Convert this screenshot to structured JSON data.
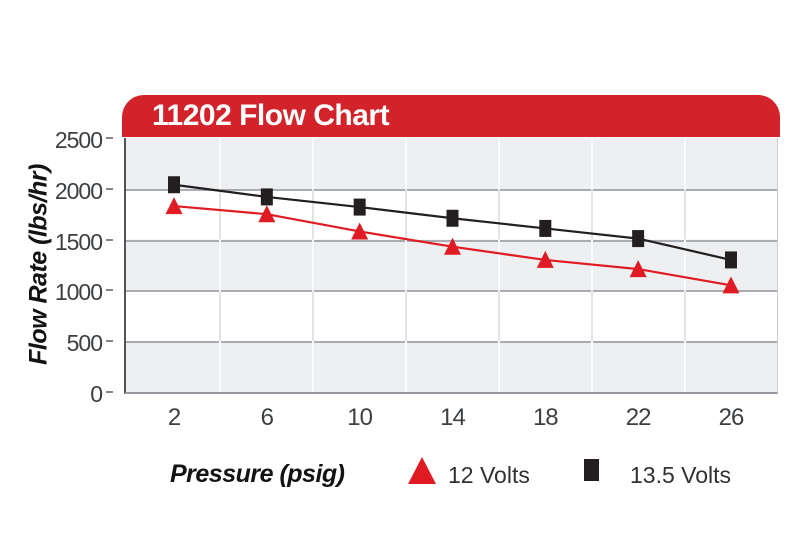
{
  "banner": {
    "title": "11202 Flow Chart"
  },
  "chart_data": {
    "type": "line",
    "title": "11202 Flow Chart",
    "xlabel": "Pressure (psig)",
    "ylabel": "Flow Rate (lbs/hr)",
    "x": [
      2,
      6,
      10,
      14,
      18,
      22,
      26
    ],
    "xticks": [
      2,
      6,
      10,
      14,
      18,
      22,
      26
    ],
    "yticks": [
      0,
      500,
      1000,
      1500,
      2000,
      2500
    ],
    "ylim": [
      0,
      2500
    ],
    "grid": "horizontal gridlines every 500 with alternating gray/white bands; faint vertical gridlines midway between x ticks",
    "legend_position": "bottom",
    "series": [
      {
        "name": "12 Volts",
        "marker": "triangle",
        "color": "#e11b23",
        "values": [
          1830,
          1750,
          1580,
          1430,
          1300,
          1210,
          1050
        ]
      },
      {
        "name": "13.5 Volts",
        "marker": "square",
        "color": "#231f20",
        "values": [
          2040,
          1920,
          1820,
          1710,
          1610,
          1510,
          1300
        ]
      }
    ],
    "colors": {
      "banner_red": "#d2232a",
      "band_gray": "#edeff1",
      "band_white": "#ffffff",
      "gridline": "#a9adb1"
    }
  }
}
